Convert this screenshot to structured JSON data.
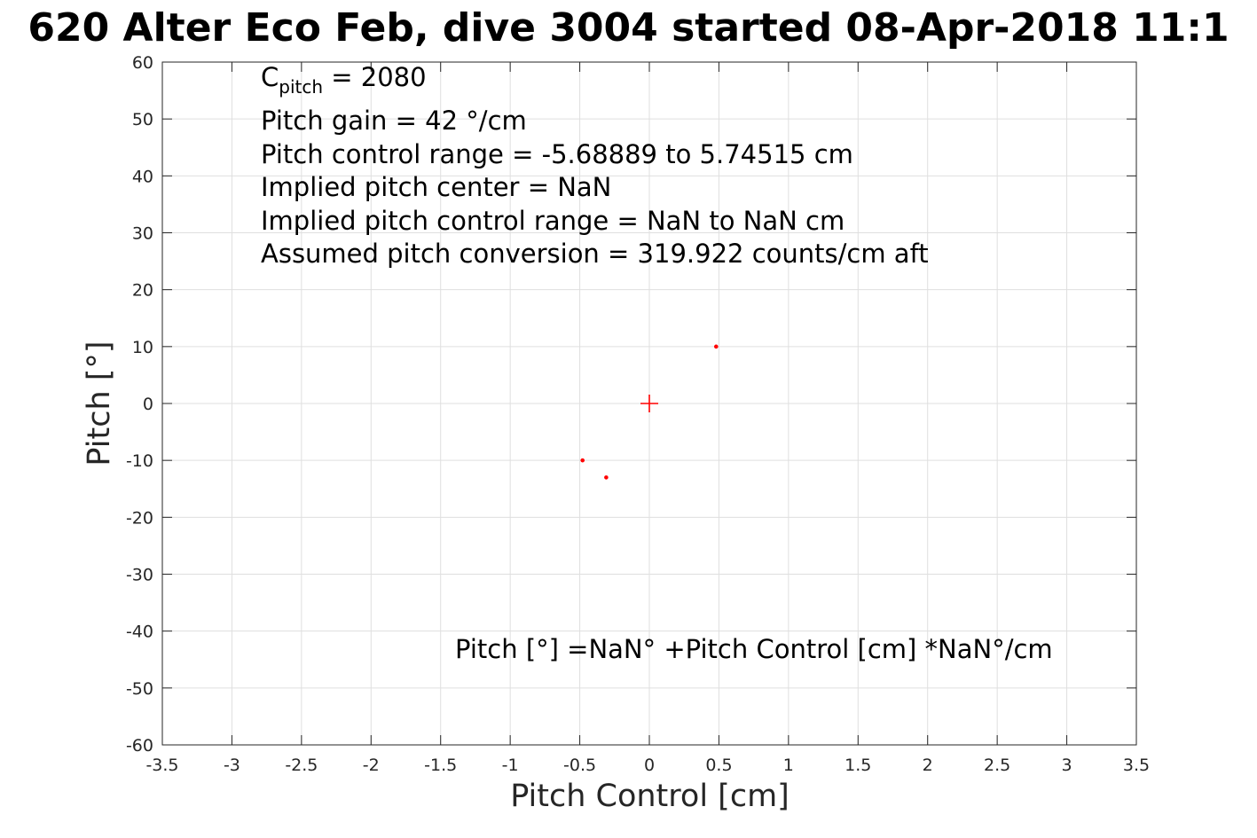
{
  "title": "620 Alter Eco Feb, dive 3004 started 08-Apr-2018 11:1",
  "annotations": {
    "c_pitch_symbol": "C",
    "c_pitch_subscript": "pitch",
    "c_pitch_value": " = 2080",
    "pitch_gain": "Pitch gain = 42 °/cm",
    "control_range": "Pitch control range = -5.68889 to 5.74515 cm",
    "implied_center": "Implied pitch center = NaN",
    "implied_range": "Implied pitch control range = NaN to NaN cm",
    "conversion": "Assumed pitch conversion = 319.922 counts/cm aft",
    "fit_equation": "Pitch [°] =NaN° +Pitch Control [cm] *NaN°/cm"
  },
  "chart_data": {
    "type": "scatter",
    "xlabel": "Pitch Control [cm]",
    "ylabel": "Pitch [°]",
    "xlim": [
      -3.5,
      3.5
    ],
    "ylim": [
      -60,
      60
    ],
    "xticks": [
      -3.5,
      -3,
      -2.5,
      -2,
      -1.5,
      -1,
      -0.5,
      0,
      0.5,
      1,
      1.5,
      2,
      2.5,
      3,
      3.5
    ],
    "yticks": [
      -60,
      -50,
      -40,
      -30,
      -20,
      -10,
      0,
      10,
      20,
      30,
      40,
      50,
      60
    ],
    "xtick_labels": [
      "-3.5",
      "-3",
      "-2.5",
      "-2",
      "-1.5",
      "-1",
      "-0.5",
      "0",
      "0.5",
      "1",
      "1.5",
      "2",
      "2.5",
      "3",
      "3.5"
    ],
    "ytick_labels": [
      "-60",
      "-50",
      "-40",
      "-30",
      "-20",
      "-10",
      "0",
      "10",
      "20",
      "30",
      "40",
      "50",
      "60"
    ],
    "grid": true,
    "series": [
      {
        "name": "samples",
        "marker": "dot",
        "color": "#ff0000",
        "x": [
          0.48,
          -0.48,
          -0.31
        ],
        "y": [
          10,
          -10,
          -13
        ]
      },
      {
        "name": "center",
        "marker": "plus",
        "color": "#ff0000",
        "x": [
          0
        ],
        "y": [
          0
        ]
      }
    ]
  }
}
